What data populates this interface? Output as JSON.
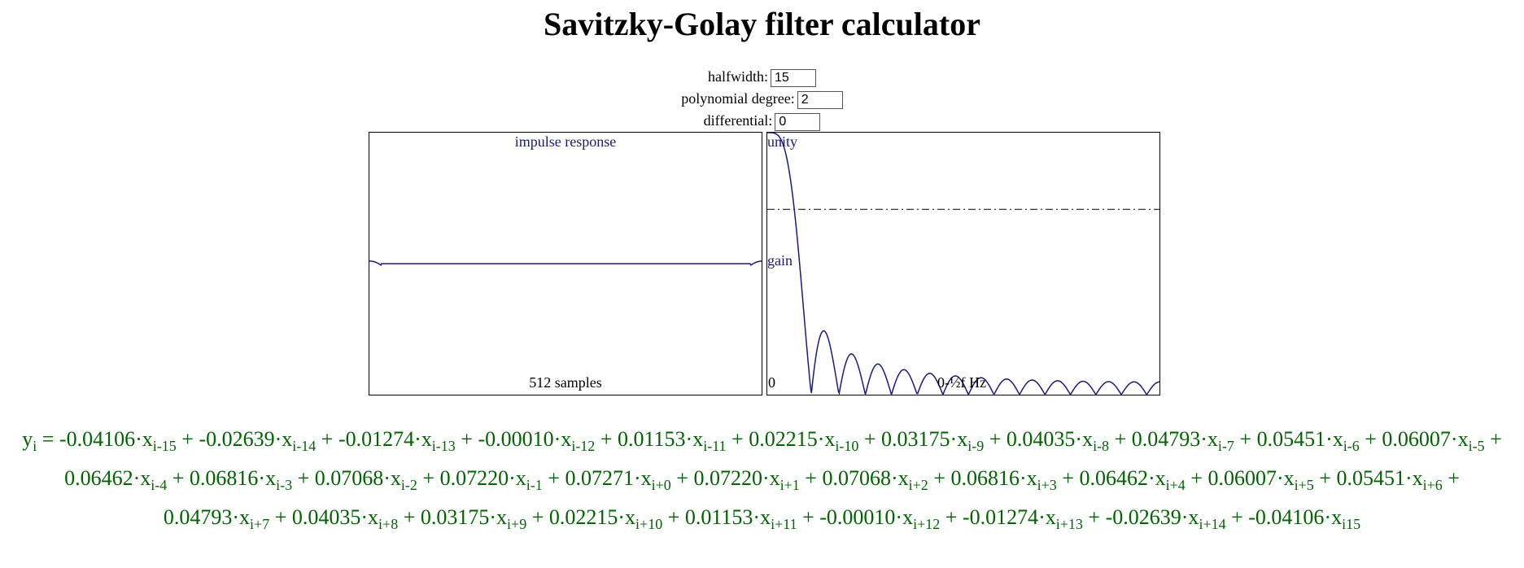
{
  "page": {
    "title": "Savitzky-Golay filter calculator"
  },
  "inputs": {
    "halfwidth": {
      "label": "halfwidth:",
      "value": "15"
    },
    "degree": {
      "label": "polynomial degree:",
      "value": "2"
    },
    "differential": {
      "label": "differential:",
      "value": "0"
    }
  },
  "impulse_plot": {
    "title": "impulse response",
    "x_label": "512 samples"
  },
  "frequency_plot": {
    "top_label": "unity",
    "y_label": "gain",
    "origin_label": "0",
    "x_label": "0-½f Hz"
  },
  "chart_data": [
    {
      "type": "line",
      "title": "impulse response",
      "xlabel": "512 samples",
      "x": [
        -15,
        -14,
        -13,
        -12,
        -11,
        -10,
        -9,
        -8,
        -7,
        -6,
        -5,
        -4,
        -3,
        -2,
        -1,
        0,
        1,
        2,
        3,
        4,
        5,
        6,
        7,
        8,
        9,
        10,
        11,
        12,
        13,
        14,
        15
      ],
      "values": [
        -0.04106,
        -0.02639,
        -0.01274,
        -0.0001,
        0.01153,
        0.02215,
        0.03175,
        0.04035,
        0.04793,
        0.05451,
        0.06007,
        0.06462,
        0.06816,
        0.07068,
        0.0722,
        0.07271,
        0.0722,
        0.07068,
        0.06816,
        0.06462,
        0.06007,
        0.05451,
        0.04793,
        0.04035,
        0.03175,
        0.02215,
        0.01153,
        -0.0001,
        -0.01274,
        -0.02639,
        -0.04106
      ]
    },
    {
      "type": "line",
      "series": [
        {
          "values": "frequency response of the coefficients (|H(f)|, 0 to ½f Hz)"
        },
        {
          "values": "reference line at 0.7071 of unity, dash-dot"
        }
      ],
      "ylabel": "gain",
      "xlabel": "0-½f Hz",
      "ylim": [
        0,
        1
      ],
      "reference_line": 0.7071
    }
  ],
  "colors": {
    "plot_line": "#1a1a80",
    "equation": "#006400",
    "frame": "#000000"
  },
  "equation": {
    "lhs": "y",
    "lhs_sub": "i",
    "terms": [
      {
        "coef": "-0.04106",
        "sub": "i-15"
      },
      {
        "coef": "-0.02639",
        "sub": "i-14"
      },
      {
        "coef": "-0.01274",
        "sub": "i-13"
      },
      {
        "coef": "-0.00010",
        "sub": "i-12"
      },
      {
        "coef": "0.01153",
        "sub": "i-11"
      },
      {
        "coef": "0.02215",
        "sub": "i-10"
      },
      {
        "coef": "0.03175",
        "sub": "i-9"
      },
      {
        "coef": "0.04035",
        "sub": "i-8"
      },
      {
        "coef": "0.04793",
        "sub": "i-7"
      },
      {
        "coef": "0.05451",
        "sub": "i-6"
      },
      {
        "coef": "0.06007",
        "sub": "i-5"
      },
      {
        "coef": "0.06462",
        "sub": "i-4"
      },
      {
        "coef": "0.06816",
        "sub": "i-3"
      },
      {
        "coef": "0.07068",
        "sub": "i-2"
      },
      {
        "coef": "0.07220",
        "sub": "i-1"
      },
      {
        "coef": "0.07271",
        "sub": "i+0"
      },
      {
        "coef": "0.07220",
        "sub": "i+1"
      },
      {
        "coef": "0.07068",
        "sub": "i+2"
      },
      {
        "coef": "0.06816",
        "sub": "i+3"
      },
      {
        "coef": "0.06462",
        "sub": "i+4"
      },
      {
        "coef": "0.06007",
        "sub": "i+5"
      },
      {
        "coef": "0.05451",
        "sub": "i+6"
      },
      {
        "coef": "0.04793",
        "sub": "i+7"
      },
      {
        "coef": "0.04035",
        "sub": "i+8"
      },
      {
        "coef": "0.03175",
        "sub": "i+9"
      },
      {
        "coef": "0.02215",
        "sub": "i+10"
      },
      {
        "coef": "0.01153",
        "sub": "i+11"
      },
      {
        "coef": "-0.00010",
        "sub": "i+12"
      },
      {
        "coef": "-0.01274",
        "sub": "i+13"
      },
      {
        "coef": "-0.02639",
        "sub": "i+14"
      },
      {
        "coef": "-0.04106",
        "sub": "i15"
      }
    ]
  }
}
